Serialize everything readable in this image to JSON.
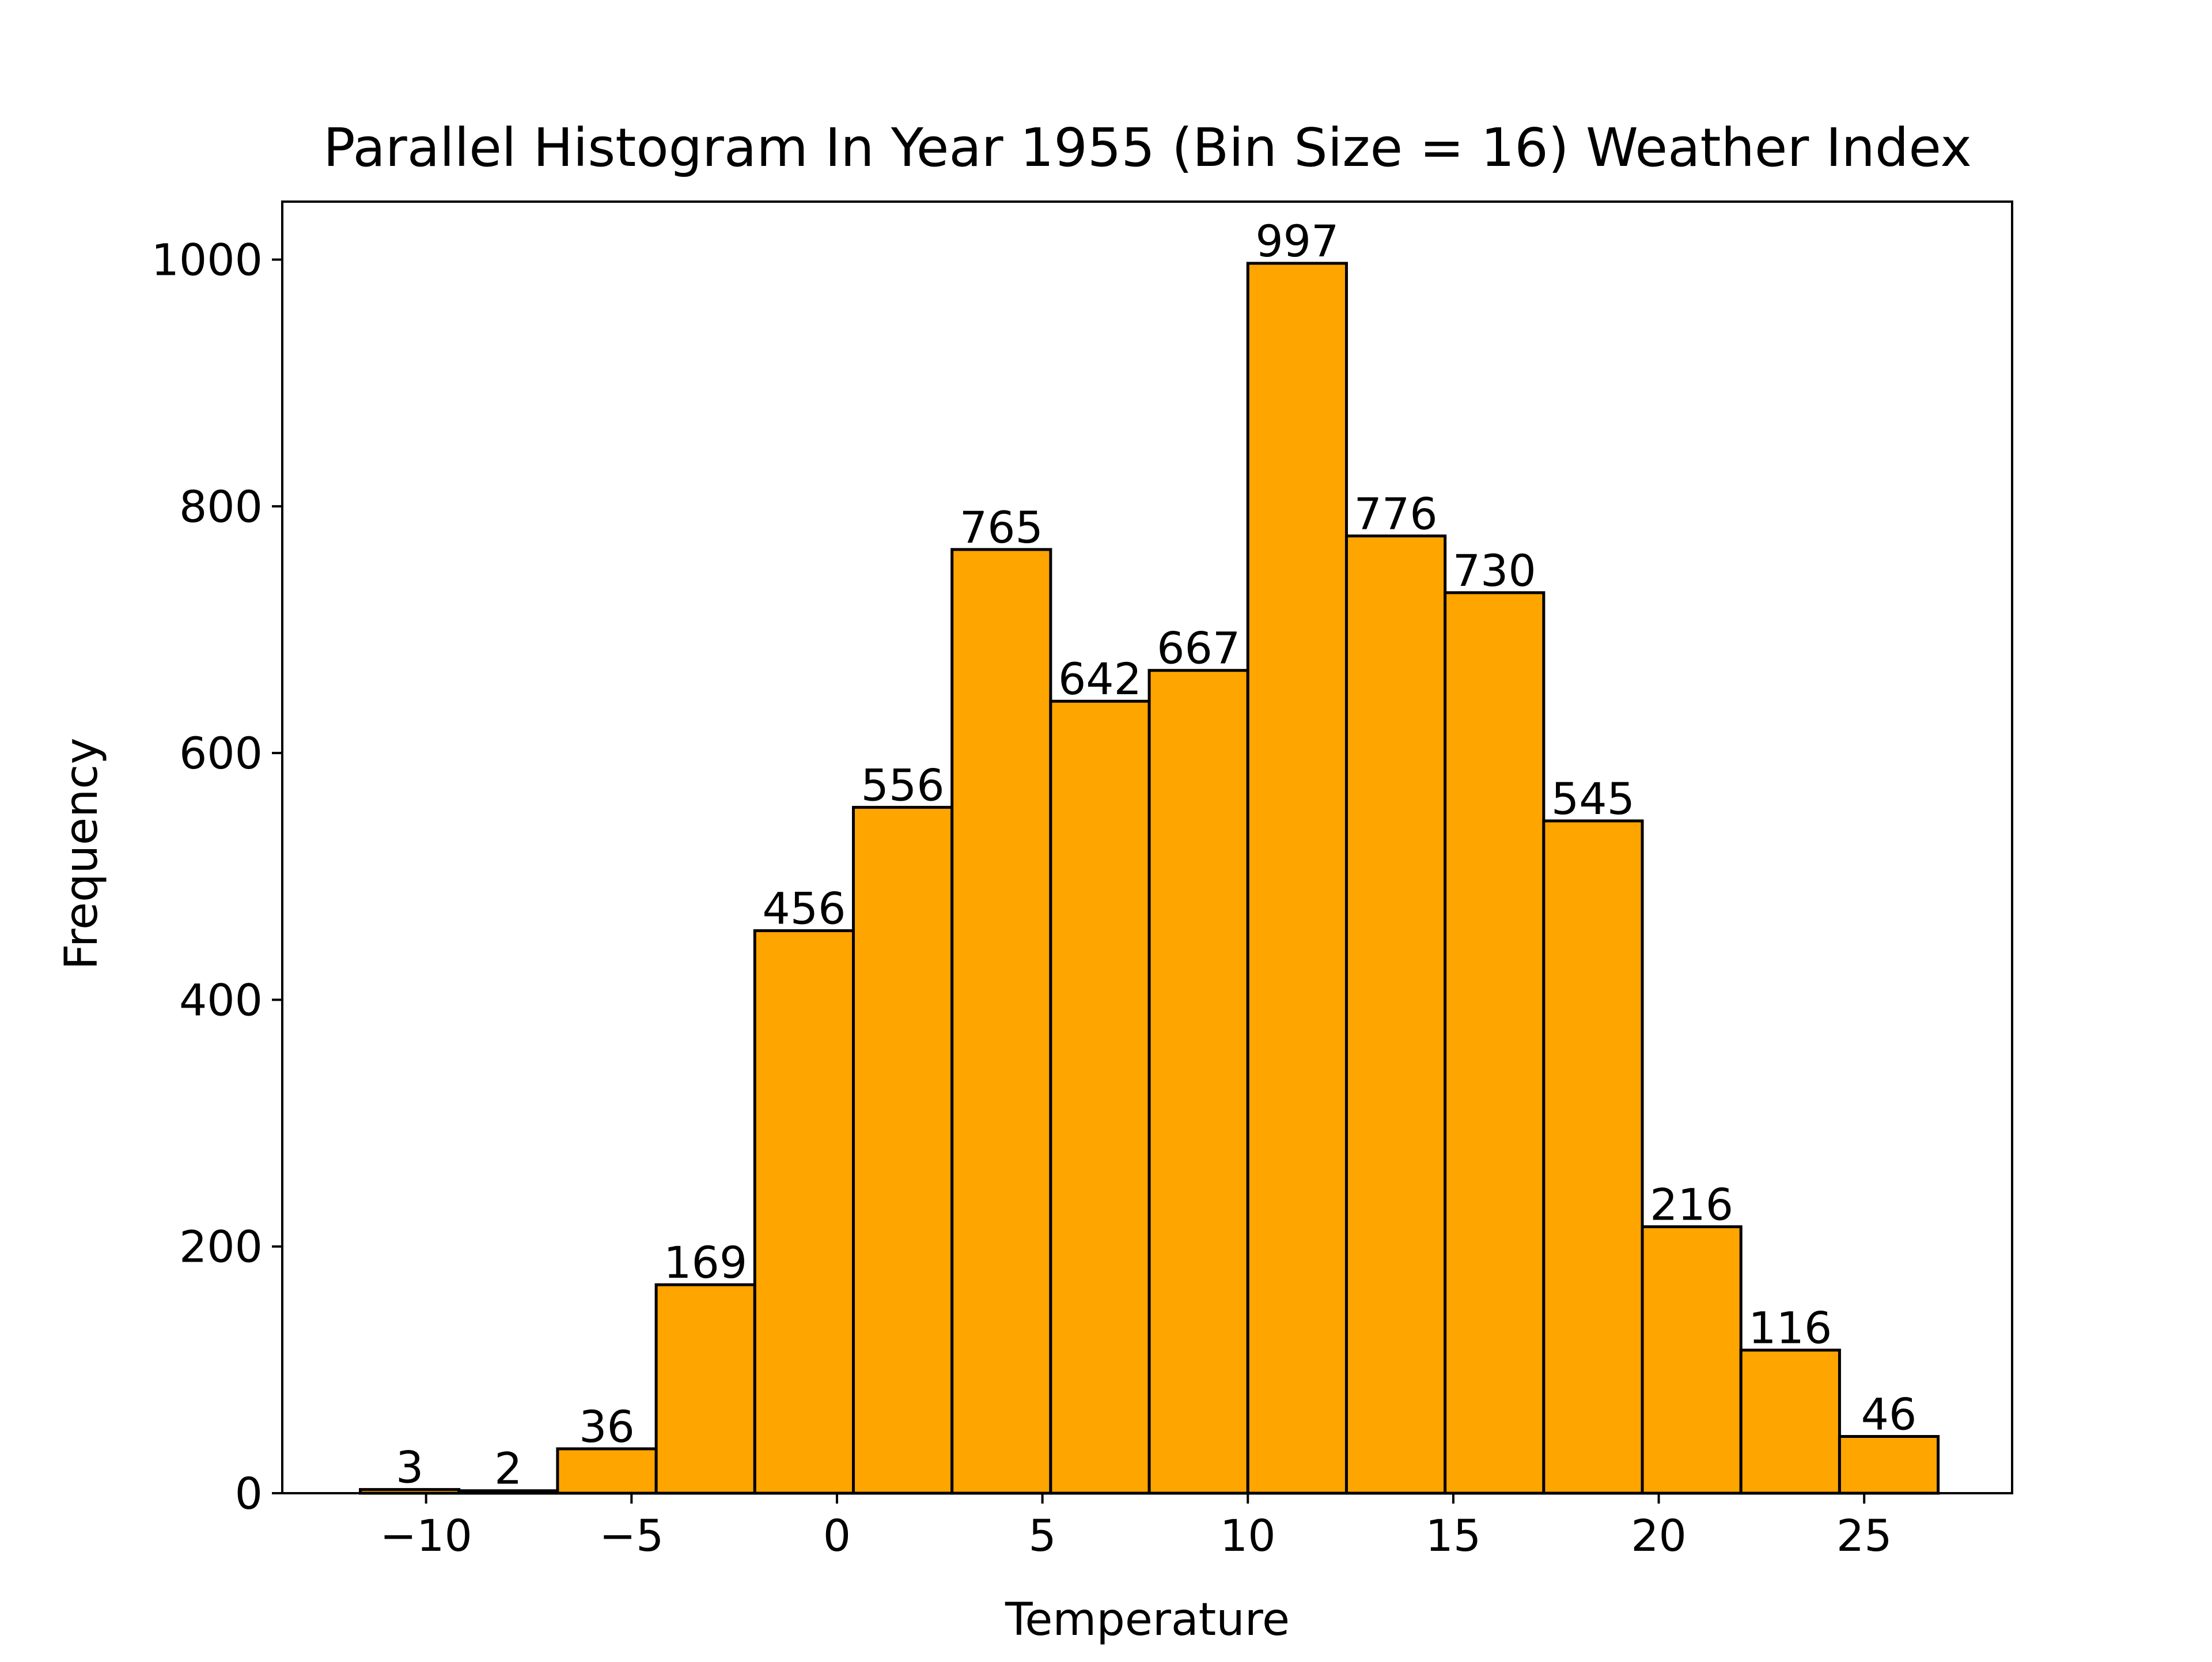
{
  "chart_data": {
    "type": "bar",
    "title": "Parallel Histogram In Year 1955 (Bin Size = 16) Weather Index",
    "xlabel": "Temperature",
    "ylabel": "Frequency",
    "bin_edges": [
      -11.6,
      -9.2,
      -6.8,
      -4.4,
      -2.0,
      0.4,
      2.8,
      5.2,
      7.6,
      10.0,
      12.4,
      14.8,
      17.2,
      19.6,
      22.0,
      24.4,
      26.8
    ],
    "values": [
      3,
      2,
      36,
      169,
      456,
      556,
      765,
      642,
      667,
      997,
      776,
      730,
      545,
      216,
      116,
      46
    ],
    "xlim": [
      -13.5,
      28.6
    ],
    "ylim": [
      0,
      1047
    ],
    "xticks": [
      -10,
      -5,
      0,
      5,
      10,
      15,
      20,
      25
    ],
    "xtick_labels": [
      "−10",
      "−5",
      "0",
      "5",
      "10",
      "15",
      "20",
      "25"
    ],
    "yticks": [
      0,
      200,
      400,
      600,
      800,
      1000
    ],
    "ytick_labels": [
      "0",
      "200",
      "400",
      "600",
      "800",
      "1000"
    ],
    "bar_color": "#FFA500",
    "edge_color": "#000000",
    "grid": false,
    "legend": "none"
  }
}
